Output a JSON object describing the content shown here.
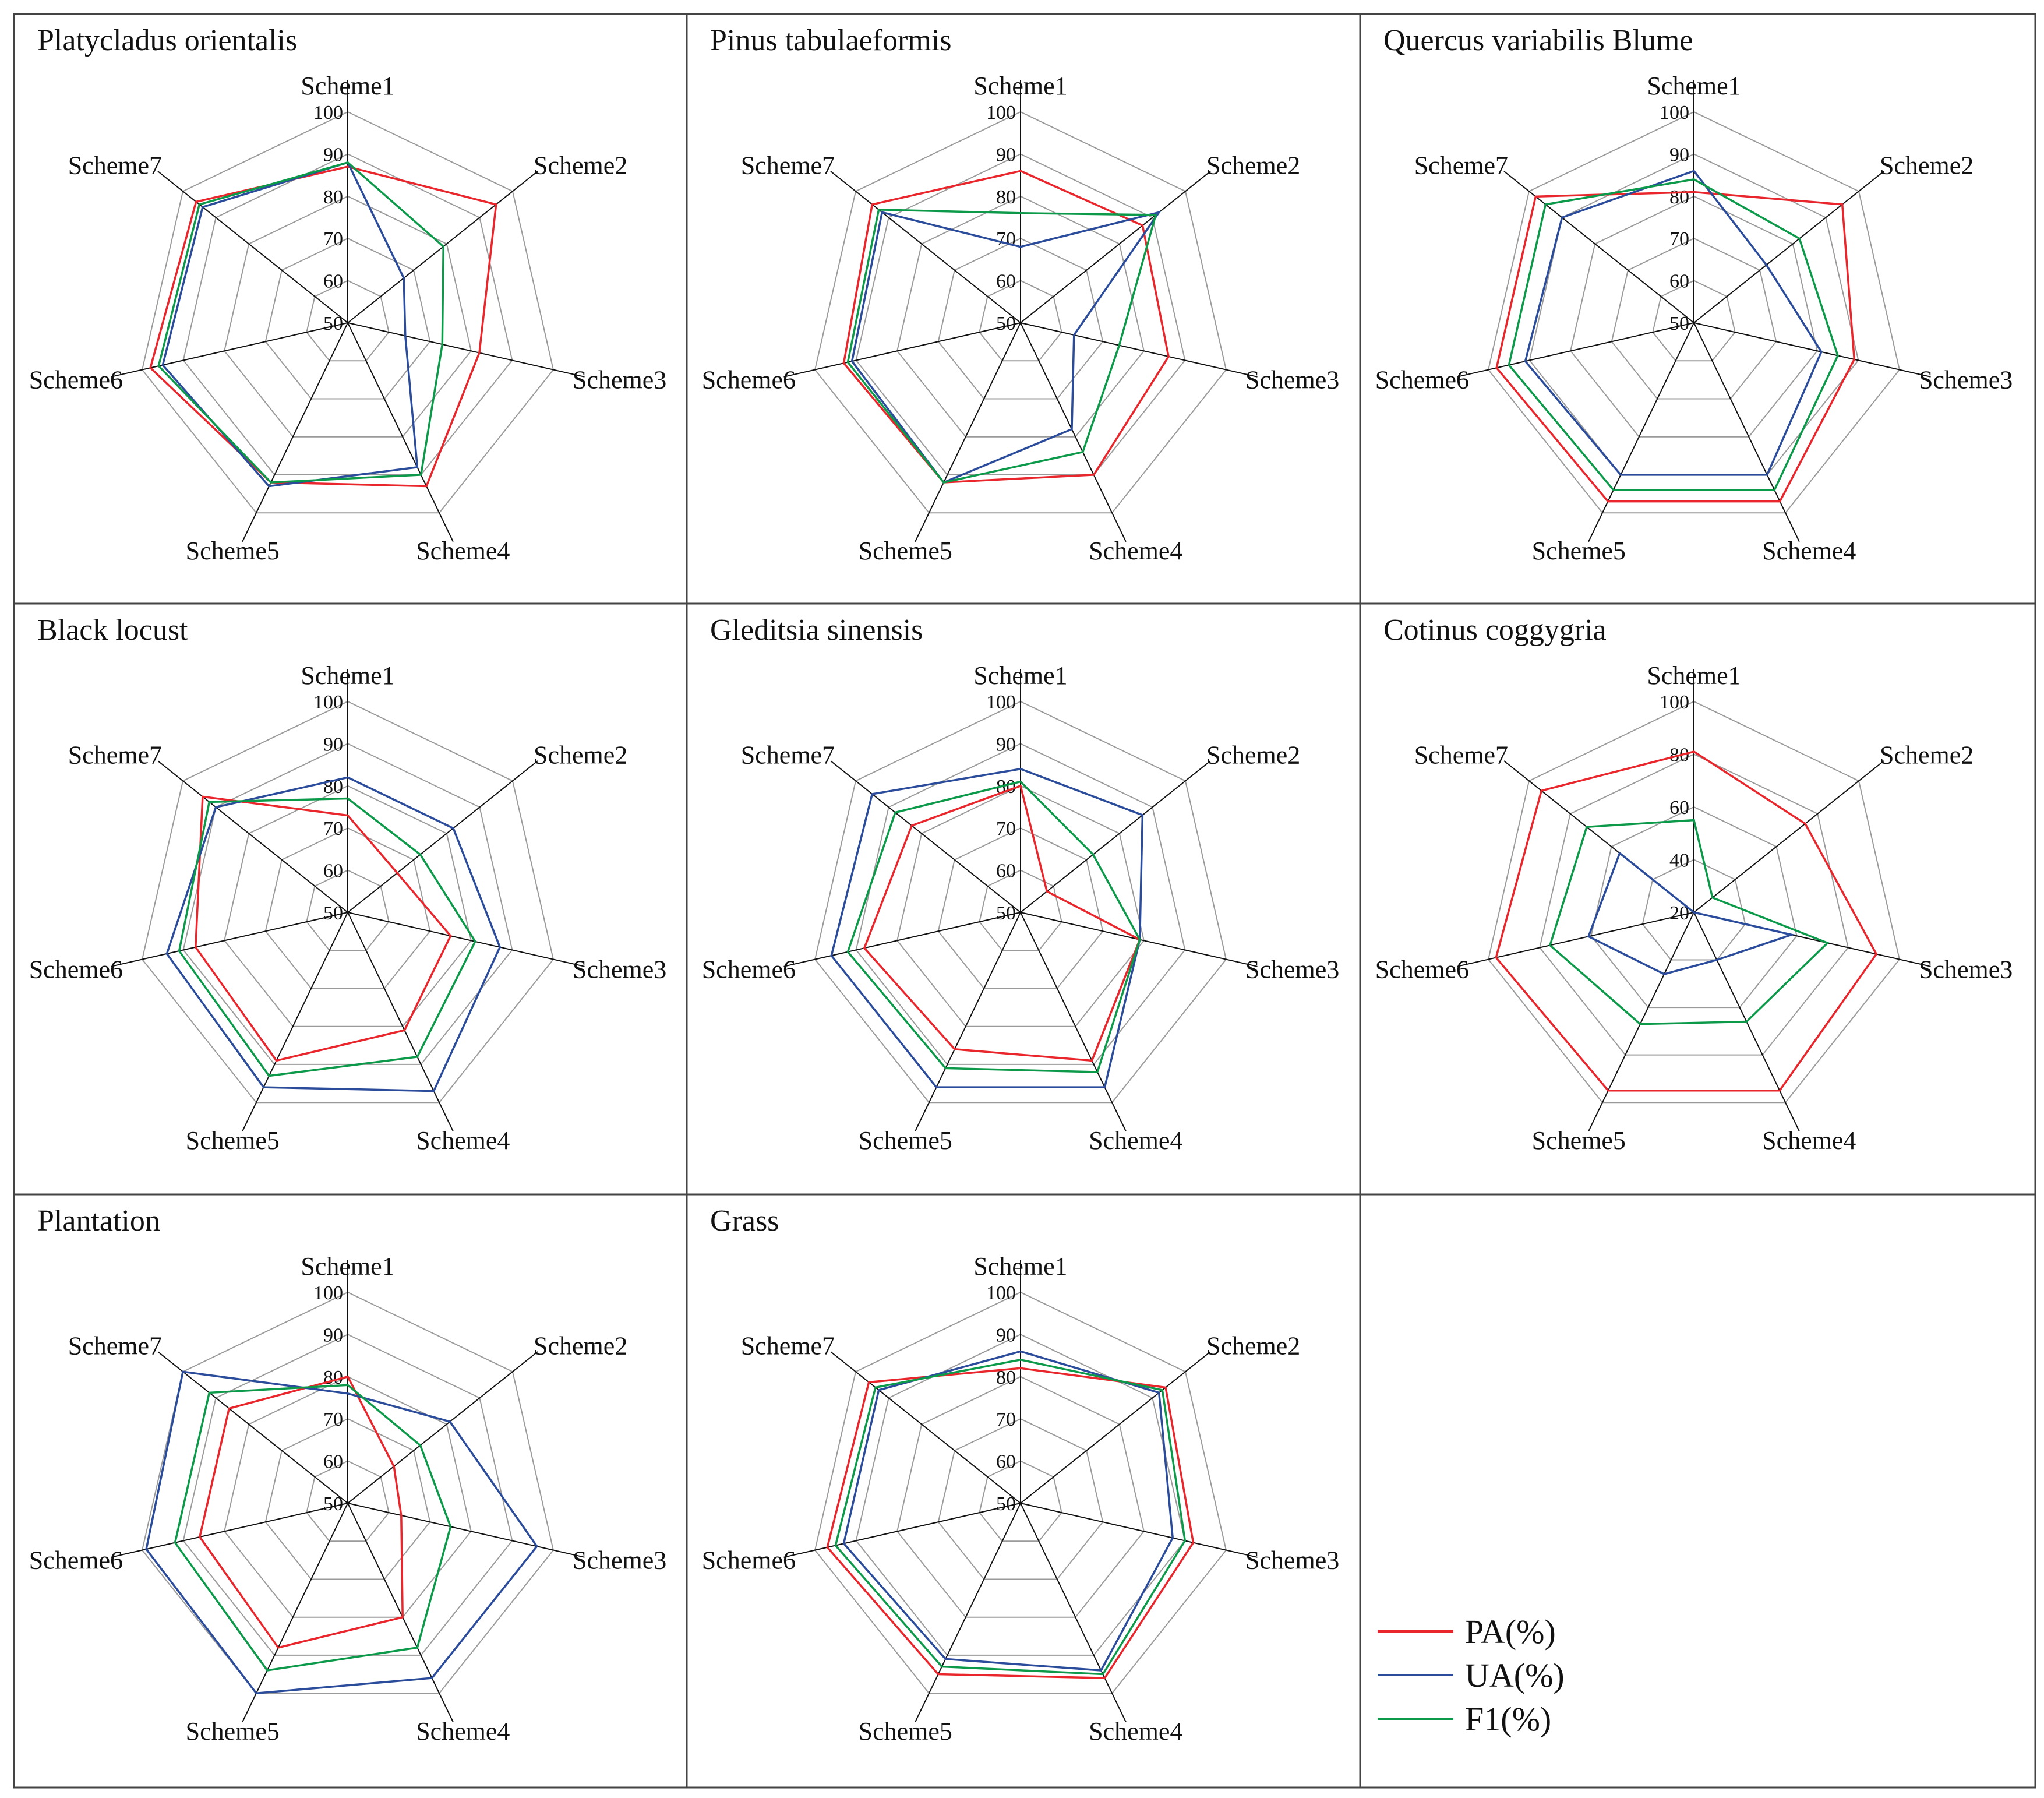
{
  "figure": {
    "legend": {
      "items": [
        {
          "key": "PA",
          "label": "PA(%)",
          "color": "#e8262c"
        },
        {
          "key": "UA",
          "label": "UA(%)",
          "color": "#2b4c9b"
        },
        {
          "key": "F1",
          "label": "F1(%)",
          "color": "#0c9a4a"
        }
      ]
    }
  },
  "chart_data": [
    {
      "type": "radar",
      "title": "Platycladus orientalis",
      "axes": [
        "Scheme1",
        "Scheme2",
        "Scheme3",
        "Scheme4",
        "Scheme5",
        "Scheme6",
        "Scheme7"
      ],
      "rlim": [
        50,
        100
      ],
      "ticks": [
        "50",
        "60",
        "70",
        "80",
        "90",
        "100"
      ],
      "series": [
        {
          "name": "PA(%)",
          "values": [
            87,
            95,
            82,
            93,
            92,
            98,
            96
          ]
        },
        {
          "name": "UA(%)",
          "values": [
            88,
            67,
            64,
            88,
            93,
            95,
            94
          ]
        },
        {
          "name": "F1(%)",
          "values": [
            88,
            79,
            73,
            90,
            92,
            96,
            95
          ]
        }
      ]
    },
    {
      "type": "radar",
      "title": "Pinus tabulaeformis",
      "axes": [
        "Scheme1",
        "Scheme2",
        "Scheme3",
        "Scheme4",
        "Scheme5",
        "Scheme6",
        "Scheme7"
      ],
      "rlim": [
        50,
        100
      ],
      "ticks": [
        "50",
        "60",
        "70",
        "80",
        "90",
        "100"
      ],
      "series": [
        {
          "name": "PA(%)",
          "values": [
            86,
            87,
            86,
            90,
            92,
            93,
            95
          ]
        },
        {
          "name": "UA(%)",
          "values": [
            68,
            92,
            63,
            78,
            92,
            91,
            92
          ]
        },
        {
          "name": "F1(%)",
          "values": [
            76,
            91,
            74,
            84,
            92,
            92,
            93
          ]
        }
      ]
    },
    {
      "type": "radar",
      "title": "Quercus variabilis Blume",
      "axes": [
        "Scheme1",
        "Scheme2",
        "Scheme3",
        "Scheme4",
        "Scheme5",
        "Scheme6",
        "Scheme7"
      ],
      "rlim": [
        50,
        100
      ],
      "ticks": [
        "50",
        "60",
        "70",
        "80",
        "90",
        "100"
      ],
      "series": [
        {
          "name": "PA(%)",
          "values": [
            81,
            95,
            89,
            97,
            97,
            98,
            98
          ]
        },
        {
          "name": "UA(%)",
          "values": [
            86,
            72,
            81,
            90,
            90,
            91,
            90
          ]
        },
        {
          "name": "F1(%)",
          "values": [
            84,
            82,
            85,
            94,
            94,
            95,
            95
          ]
        }
      ]
    },
    {
      "type": "radar",
      "title": "Black locust",
      "axes": [
        "Scheme1",
        "Scheme2",
        "Scheme3",
        "Scheme4",
        "Scheme5",
        "Scheme6",
        "Scheme7"
      ],
      "rlim": [
        50,
        100
      ],
      "ticks": [
        "50",
        "60",
        "70",
        "80",
        "90",
        "100"
      ],
      "series": [
        {
          "name": "PA(%)",
          "values": [
            73,
            65,
            75,
            81,
            89,
            87,
            94
          ]
        },
        {
          "name": "UA(%)",
          "values": [
            82,
            82,
            87,
            97,
            96,
            94,
            90
          ]
        },
        {
          "name": "F1(%)",
          "values": [
            77,
            72,
            81,
            88,
            93,
            91,
            92
          ]
        }
      ]
    },
    {
      "type": "radar",
      "title": "Gleditsia sinensis",
      "axes": [
        "Scheme1",
        "Scheme2",
        "Scheme3",
        "Scheme4",
        "Scheme5",
        "Scheme6",
        "Scheme7"
      ],
      "rlim": [
        50,
        100
      ],
      "ticks": [
        "50",
        "60",
        "70",
        "80",
        "90",
        "100"
      ],
      "series": [
        {
          "name": "PA(%)",
          "values": [
            80,
            58,
            79,
            89,
            86,
            88,
            83
          ]
        },
        {
          "name": "UA(%)",
          "values": [
            84,
            87,
            79,
            96,
            96,
            96,
            95
          ]
        },
        {
          "name": "F1(%)",
          "values": [
            81,
            72,
            79,
            92,
            91,
            92,
            88
          ]
        }
      ]
    },
    {
      "type": "radar",
      "title": "Cotinus coggygria",
      "axes": [
        "Scheme1",
        "Scheme2",
        "Scheme3",
        "Scheme4",
        "Scheme5",
        "Scheme6",
        "Scheme7"
      ],
      "rlim": [
        20,
        100
      ],
      "ticks": [
        "20",
        "40",
        "60",
        "80",
        "100"
      ],
      "series": [
        {
          "name": "PA(%)",
          "values": [
            81,
            74,
            91,
            95,
            95,
            97,
            94
          ]
        },
        {
          "name": "UA(%)",
          "values": [
            20,
            20,
            58,
            40,
            46,
            61,
            56
          ]
        },
        {
          "name": "F1(%)",
          "values": [
            55,
            29,
            72,
            66,
            67,
            76,
            72
          ]
        }
      ]
    },
    {
      "type": "radar",
      "title": "Plantation",
      "axes": [
        "Scheme1",
        "Scheme2",
        "Scheme3",
        "Scheme4",
        "Scheme5",
        "Scheme6",
        "Scheme7"
      ],
      "rlim": [
        50,
        100
      ],
      "ticks": [
        "50",
        "60",
        "70",
        "80",
        "90",
        "100"
      ],
      "series": [
        {
          "name": "PA(%)",
          "values": [
            80,
            64,
            63,
            80,
            88,
            86,
            86
          ]
        },
        {
          "name": "UA(%)",
          "values": [
            76,
            81,
            96,
            96,
            100,
            99,
            100
          ]
        },
        {
          "name": "F1(%)",
          "values": [
            78,
            72,
            75,
            88,
            94,
            92,
            92
          ]
        }
      ]
    },
    {
      "type": "radar",
      "title": "Grass",
      "axes": [
        "Scheme1",
        "Scheme2",
        "Scheme3",
        "Scheme4",
        "Scheme5",
        "Scheme6",
        "Scheme7"
      ],
      "rlim": [
        50,
        100
      ],
      "ticks": [
        "50",
        "60",
        "70",
        "80",
        "90",
        "100"
      ],
      "series": [
        {
          "name": "PA(%)",
          "values": [
            82,
            94,
            92,
            96,
            95,
            97,
            96
          ]
        },
        {
          "name": "UA(%)",
          "values": [
            86,
            92,
            87,
            94,
            91,
            93,
            93
          ]
        },
        {
          "name": "F1(%)",
          "values": [
            84,
            93,
            90,
            95,
            93,
            95,
            94
          ]
        }
      ]
    }
  ]
}
